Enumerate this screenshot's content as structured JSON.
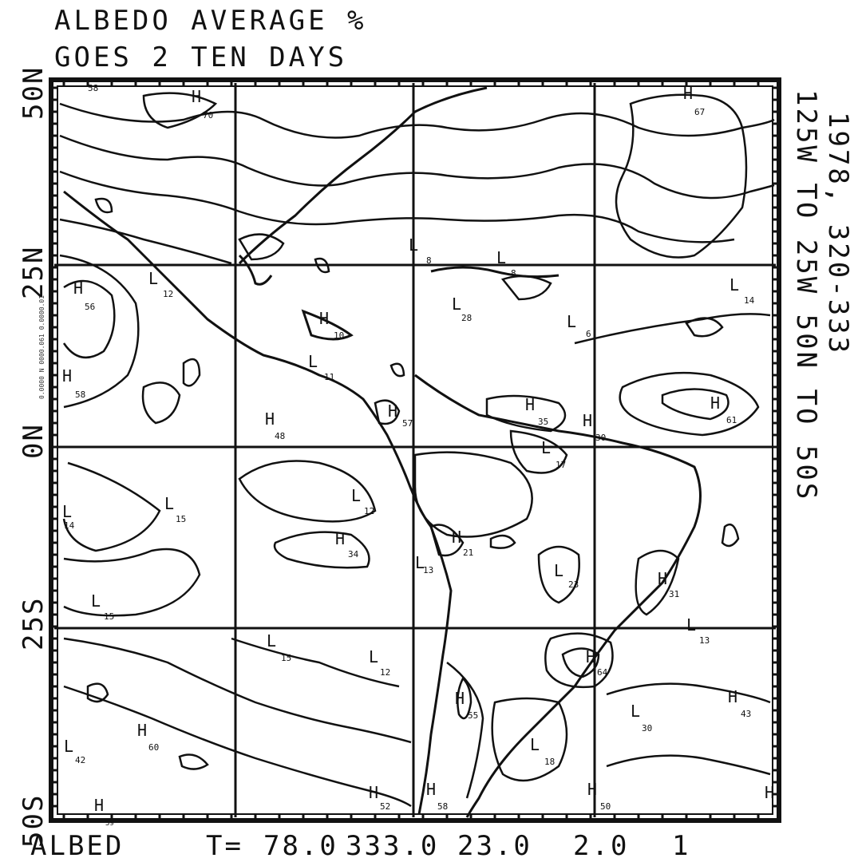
{
  "header": {
    "title_line1": "ALBEDO AVERAGE  %",
    "title_line2": "GOES 2   TEN DAYS"
  },
  "right_labels": {
    "line1": "1978, 320-333",
    "line2": "125W TO 25W   50N TO 50S"
  },
  "lat_labels": [
    "50N",
    "25N",
    "0N",
    "25S",
    "50S"
  ],
  "footer": {
    "label": "ALBED",
    "t_label": "T=",
    "values": [
      "78.0",
      "333.0",
      "23.0",
      "2.0",
      "1"
    ]
  },
  "frame_axis_text": "0.0000  N 0000.061  0.0000.01",
  "contour_labels": [
    {
      "letter": "H",
      "value": "70"
    },
    {
      "letter": "H",
      "value": "67"
    },
    {
      "letter": "L",
      "value": "12"
    },
    {
      "letter": "H",
      "value": "56"
    },
    {
      "letter": "H",
      "value": "10"
    },
    {
      "letter": "L",
      "value": "8"
    },
    {
      "letter": "L",
      "value": "8"
    },
    {
      "letter": "L",
      "value": "14"
    },
    {
      "letter": "L",
      "value": "28"
    },
    {
      "letter": "L",
      "value": "6"
    },
    {
      "letter": "L",
      "value": "11"
    },
    {
      "letter": "H",
      "value": "58"
    },
    {
      "letter": "H",
      "value": "48"
    },
    {
      "letter": "H",
      "value": "57"
    },
    {
      "letter": "H",
      "value": "35"
    },
    {
      "letter": "H",
      "value": "30"
    },
    {
      "letter": "H",
      "value": "61"
    },
    {
      "letter": "L",
      "value": "15"
    },
    {
      "letter": "L",
      "value": "14"
    },
    {
      "letter": "L",
      "value": "12"
    },
    {
      "letter": "L",
      "value": "17"
    },
    {
      "letter": "H",
      "value": "34"
    },
    {
      "letter": "H",
      "value": "21"
    },
    {
      "letter": "L",
      "value": "13"
    },
    {
      "letter": "L",
      "value": "23"
    },
    {
      "letter": "H",
      "value": "31"
    },
    {
      "letter": "L",
      "value": "15"
    },
    {
      "letter": "L",
      "value": "15"
    },
    {
      "letter": "L",
      "value": "12"
    },
    {
      "letter": "H",
      "value": "64"
    },
    {
      "letter": "L",
      "value": "13"
    },
    {
      "letter": "H",
      "value": "55"
    },
    {
      "letter": "H",
      "value": "43"
    },
    {
      "letter": "H",
      "value": "60"
    },
    {
      "letter": "L",
      "value": "30"
    },
    {
      "letter": "L",
      "value": "42"
    },
    {
      "letter": "L",
      "value": "18"
    },
    {
      "letter": "H",
      "value": "52"
    },
    {
      "letter": "H",
      "value": "58"
    },
    {
      "letter": "H",
      "value": "50"
    },
    {
      "letter": "H",
      "value": "58"
    },
    {
      "letter": "H",
      "value": "59"
    }
  ]
}
